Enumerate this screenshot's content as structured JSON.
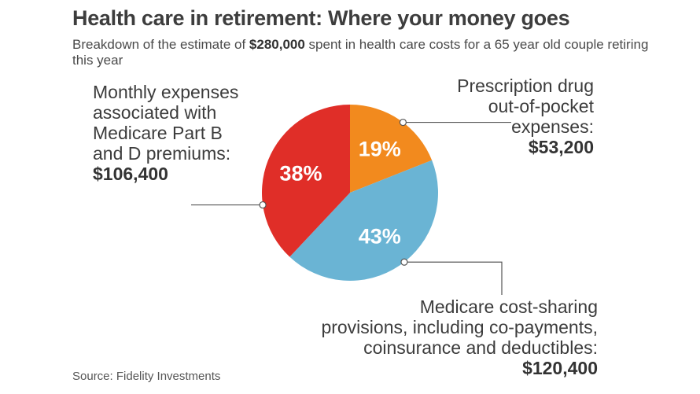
{
  "chart_data": {
    "type": "pie",
    "title": "Health care in retirement: Where your money goes",
    "subtitle_prefix": "Breakdown of the estimate of ",
    "subtitle_amount": "$280,000",
    "subtitle_suffix": " spent in health care costs for a 65 year old couple retiring this year",
    "slices": [
      {
        "name": "prescription",
        "percent": 19,
        "pct_label": "19%",
        "color": "#f28a1e",
        "label_lines": [
          "Prescription drug",
          "out-of-pocket",
          "expenses:"
        ],
        "amount": "$53,200"
      },
      {
        "name": "cost-sharing",
        "percent": 43,
        "pct_label": "43%",
        "color": "#6ab4d4",
        "label_lines": [
          "Medicare cost-sharing",
          "provisions, including co-payments,",
          "coinsurance and deductibles:"
        ],
        "amount": "$120,400"
      },
      {
        "name": "premiums",
        "percent": 38,
        "pct_label": "38%",
        "color": "#e02e28",
        "label_lines": [
          "Monthly expenses",
          "associated with",
          "Medicare Part B",
          "and D premiums:"
        ],
        "amount": "$106,400"
      }
    ],
    "source": "Source: Fidelity Investments"
  }
}
